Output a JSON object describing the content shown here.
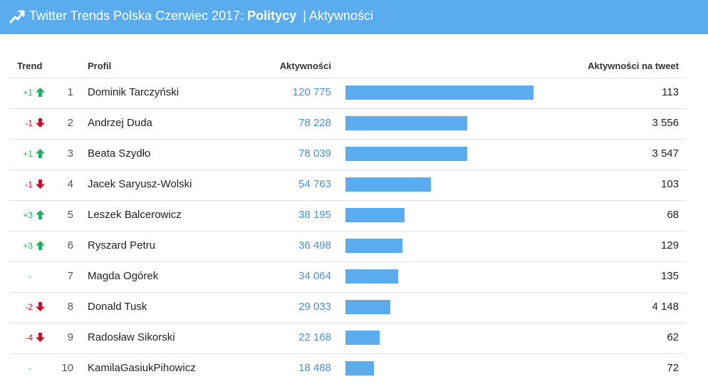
{
  "header": {
    "title_prefix": "Twitter Trends Polska Czerwiec 2017:",
    "title_bold": "Politycy",
    "separator": "|",
    "title_suffix": "Aktywności",
    "logo_icon": "trend-line-icon",
    "background": "#5aacee"
  },
  "columns": {
    "trend": "Trend",
    "profile": "Profil",
    "activity": "Aktywności",
    "per_tweet": "Aktywności na tweet"
  },
  "colors": {
    "up": "#27ae60",
    "down": "#c0142c",
    "bar": "#5aacee",
    "value": "#4a90d9"
  },
  "max_activity": 120775,
  "rows": [
    {
      "trend": "+1",
      "dir": "up",
      "rank": "1",
      "name": "Dominik Tarczyński",
      "activity_label": "120 775",
      "activity": 120775,
      "per_tweet": "113"
    },
    {
      "trend": "-1",
      "dir": "down",
      "rank": "2",
      "name": "Andrzej Duda",
      "activity_label": "78 228",
      "activity": 78228,
      "per_tweet": "3 556"
    },
    {
      "trend": "+1",
      "dir": "up",
      "rank": "3",
      "name": "Beata Szydło",
      "activity_label": "78 039",
      "activity": 78039,
      "per_tweet": "3 547"
    },
    {
      "trend": "-1",
      "dir": "down",
      "rank": "4",
      "name": "Jacek Saryusz-Wolski",
      "activity_label": "54 763",
      "activity": 54763,
      "per_tweet": "103"
    },
    {
      "trend": "+3",
      "dir": "up",
      "rank": "5",
      "name": "Leszek Balcerowicz",
      "activity_label": "38 195",
      "activity": 38195,
      "per_tweet": "68"
    },
    {
      "trend": "+3",
      "dir": "up",
      "rank": "6",
      "name": "Ryszard Petru",
      "activity_label": "36 498",
      "activity": 36498,
      "per_tweet": "129"
    },
    {
      "trend": "-",
      "dir": "same",
      "rank": "7",
      "name": "Magda Ogórek",
      "activity_label": "34 064",
      "activity": 34064,
      "per_tweet": "135"
    },
    {
      "trend": "-2",
      "dir": "down",
      "rank": "8",
      "name": "Donald Tusk",
      "activity_label": "29 033",
      "activity": 29033,
      "per_tweet": "4 148"
    },
    {
      "trend": "-4",
      "dir": "down",
      "rank": "9",
      "name": "Radosław Sikorski",
      "activity_label": "22 168",
      "activity": 22168,
      "per_tweet": "62"
    },
    {
      "trend": "-",
      "dir": "same",
      "rank": "10",
      "name": "KamilaGasiukPihowicz",
      "activity_label": "18 488",
      "activity": 18488,
      "per_tweet": "72"
    }
  ]
}
